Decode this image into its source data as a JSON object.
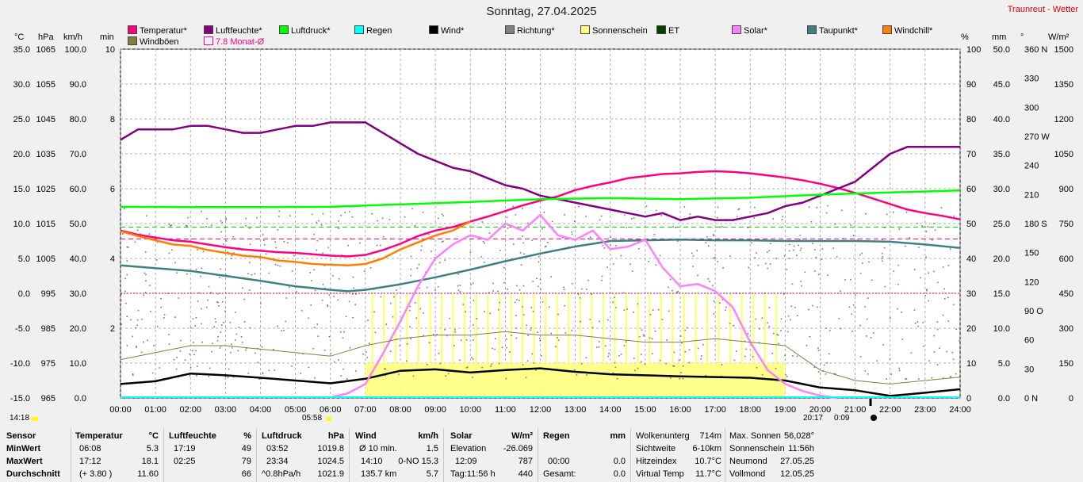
{
  "header": {
    "title": "Sonntag, 27.04.2025",
    "site": "Traunreut - Wetter"
  },
  "legend": [
    {
      "label": "Temperatur*",
      "color": "#ff0080"
    },
    {
      "label": "Luftfeuchte*",
      "color": "#800080"
    },
    {
      "label": "Luftdruck*",
      "color": "#00ff00"
    },
    {
      "label": "Regen",
      "color": "#00ffff"
    },
    {
      "label": "Wind*",
      "color": "#000000"
    },
    {
      "label": "Richtung*",
      "color": "#808080"
    },
    {
      "label": "Sonnenschein",
      "color": "#ffff80"
    },
    {
      "label": "ET",
      "color": "#004000"
    },
    {
      "label": "Solar*",
      "color": "#ff80ff"
    },
    {
      "label": "Taupunkt*",
      "color": "#408080"
    },
    {
      "label": "Windchill*",
      "color": "#ff8000"
    },
    {
      "label": "Windböen",
      "color": "#808040"
    },
    {
      "label": "7.8 Monat-Ø",
      "color": "#ff0080"
    }
  ],
  "axes_units": {
    "left": [
      "°C",
      "hPa",
      "km/h",
      "min"
    ],
    "right": [
      "%",
      "mm",
      "°",
      "W/m²"
    ]
  },
  "chart_data": {
    "type": "line",
    "x_ticks": [
      "00:00",
      "01:00",
      "02:00",
      "03:00",
      "04:00",
      "05:00",
      "06:00",
      "07:00",
      "08:00",
      "09:00",
      "10:00",
      "11:00",
      "12:00",
      "13:00",
      "14:00",
      "15:00",
      "16:00",
      "17:00",
      "18:00",
      "19:00",
      "20:00",
      "21:00",
      "22:00",
      "23:00",
      "24:00"
    ],
    "axes": {
      "temperature": {
        "unit": "°C",
        "ylim": [
          -15,
          35
        ],
        "ticks": [
          "35.0",
          "30.0",
          "25.0",
          "20.0",
          "15.0",
          "10.0",
          "5.0",
          "0.0",
          "-5.0",
          "-10.0",
          "-15.0"
        ]
      },
      "pressure": {
        "unit": "hPa",
        "ylim": [
          965,
          1065
        ],
        "ticks": [
          "1065",
          "1055",
          "1045",
          "1035",
          "1025",
          "1015",
          "1005",
          "995",
          "985",
          "975",
          "965"
        ]
      },
      "wind": {
        "unit": "km/h",
        "ylim": [
          0,
          100
        ],
        "ticks": [
          "100.0",
          "90.0",
          "80.0",
          "70.0",
          "60.0",
          "50.0",
          "40.0",
          "30.0",
          "20.0",
          "10.0",
          "0.0"
        ]
      },
      "sunshine": {
        "unit": "min",
        "ylim": [
          0,
          10
        ],
        "ticks": [
          "10",
          "",
          "8",
          "",
          "6",
          "",
          "4",
          "",
          "2",
          "",
          ""
        ]
      },
      "humidity": {
        "unit": "%",
        "ylim": [
          0,
          100
        ],
        "ticks": [
          "100",
          "90",
          "80",
          "70",
          "60",
          "50",
          "40",
          "30",
          "20",
          "10",
          "0"
        ]
      },
      "rain": {
        "unit": "mm",
        "ylim": [
          0,
          50
        ],
        "ticks": [
          "50.0",
          "45.0",
          "40.0",
          "35.0",
          "30.0",
          "25.0",
          "20.0",
          "15.0",
          "10.0",
          "5.0",
          "0.0"
        ]
      },
      "direction": {
        "unit": "°",
        "ylim": [
          0,
          360
        ],
        "ticks": [
          "360 N",
          "330",
          "300",
          "270 W",
          "240",
          "210",
          "180 S",
          "150",
          "120",
          "90 O",
          "60",
          "30",
          "0 N"
        ]
      },
      "solar": {
        "unit": "W/m²",
        "ylim": [
          0,
          1500
        ],
        "ticks": [
          "1500",
          "1350",
          "1200",
          "1050",
          "900",
          "750",
          "600",
          "450",
          "300",
          "150",
          "0"
        ]
      }
    },
    "series": [
      {
        "name": "Temperatur*",
        "axis": "temperature",
        "color": "#ff0080",
        "x": [
          0,
          0.5,
          1,
          1.5,
          2,
          2.5,
          3,
          3.5,
          4,
          4.5,
          5,
          5.5,
          6,
          6.5,
          7,
          7.5,
          8,
          8.5,
          9,
          9.5,
          10,
          10.5,
          11,
          11.5,
          12,
          12.5,
          13,
          13.5,
          14,
          14.5,
          15,
          15.5,
          16,
          16.5,
          17,
          17.5,
          18,
          18.5,
          19,
          19.5,
          20,
          20.5,
          21,
          21.5,
          22,
          22.5,
          23,
          23.5,
          24
        ],
        "values": [
          9.0,
          8.4,
          8.0,
          7.6,
          7.4,
          7.0,
          6.6,
          6.3,
          6.1,
          5.9,
          5.8,
          5.6,
          5.4,
          5.3,
          5.5,
          6.2,
          7.1,
          8.2,
          9.0,
          9.5,
          10.3,
          11.0,
          11.8,
          12.6,
          13.3,
          13.9,
          14.8,
          15.4,
          15.9,
          16.5,
          16.8,
          17.1,
          17.2,
          17.4,
          17.5,
          17.4,
          17.2,
          16.9,
          16.6,
          16.2,
          15.7,
          15.1,
          14.4,
          13.6,
          12.8,
          12.0,
          11.5,
          11.1,
          10.6
        ]
      },
      {
        "name": "Luftfeuchte*",
        "axis": "humidity",
        "color": "#800080",
        "x": [
          0,
          0.5,
          1,
          1.5,
          2,
          2.5,
          3,
          3.5,
          4,
          4.5,
          5,
          5.5,
          6,
          6.5,
          7,
          7.5,
          8,
          8.5,
          9,
          9.5,
          10,
          10.5,
          11,
          11.5,
          12,
          12.5,
          13,
          13.5,
          14,
          14.5,
          15,
          15.5,
          16,
          16.5,
          17,
          17.5,
          18,
          18.5,
          19,
          19.5,
          20,
          20.5,
          21,
          21.5,
          22,
          22.5,
          23,
          23.5,
          24
        ],
        "values": [
          74,
          77,
          77,
          77,
          78,
          78,
          77,
          76,
          76,
          77,
          78,
          78,
          79,
          79,
          79,
          76,
          73,
          70,
          68,
          66,
          65,
          63,
          61,
          60,
          58,
          57,
          56,
          55,
          54,
          53,
          52,
          53,
          51,
          52,
          51,
          51,
          52,
          53,
          55,
          56,
          58,
          60,
          62,
          66,
          70,
          72,
          72,
          72,
          72
        ]
      },
      {
        "name": "Luftdruck*",
        "axis": "pressure",
        "color": "#00ff00",
        "x": [
          0,
          2,
          4,
          6,
          8,
          10,
          12,
          14,
          16,
          18,
          20,
          22,
          24
        ],
        "values": [
          1019.8,
          1019.7,
          1019.7,
          1019.8,
          1020.5,
          1021.2,
          1022.0,
          1022.3,
          1022.0,
          1022.4,
          1023.3,
          1023.9,
          1024.5
        ]
      },
      {
        "name": "Taupunkt*",
        "axis": "temperature",
        "color": "#408080",
        "x": [
          0,
          1,
          2,
          3,
          4,
          5,
          6,
          6.5,
          7,
          8,
          9,
          10,
          11,
          12,
          13,
          14,
          15,
          16,
          17,
          18,
          19,
          20,
          21,
          22,
          23,
          24
        ],
        "values": [
          4.0,
          3.6,
          3.2,
          2.5,
          1.8,
          1.0,
          0.5,
          0.3,
          0.5,
          1.3,
          2.3,
          3.4,
          4.6,
          5.7,
          6.7,
          7.5,
          7.6,
          7.7,
          7.6,
          7.6,
          7.5,
          7.5,
          7.5,
          7.4,
          7.0,
          6.5
        ]
      },
      {
        "name": "Windchill*",
        "axis": "temperature",
        "color": "#ff8000",
        "x": [
          0,
          0.5,
          1,
          1.5,
          2,
          2.5,
          3,
          3.5,
          4,
          4.5,
          5,
          5.5,
          6,
          6.5,
          7,
          7.5,
          8,
          8.5,
          9,
          9.5,
          10
        ],
        "values": [
          8.9,
          8.2,
          7.6,
          7.0,
          6.8,
          6.2,
          5.8,
          5.4,
          5.2,
          4.7,
          4.5,
          4.2,
          4.1,
          4.0,
          4.2,
          5.0,
          6.3,
          7.3,
          8.3,
          9.0,
          10.3
        ]
      },
      {
        "name": "Wind*",
        "axis": "wind",
        "color": "#000000",
        "x": [
          0,
          1,
          2,
          3,
          4,
          5,
          6,
          7,
          8,
          9,
          10,
          11,
          12,
          13,
          14,
          15,
          16,
          17,
          18,
          19,
          20,
          21,
          22,
          23,
          24
        ],
        "values": [
          4.0,
          4.8,
          7.0,
          6.5,
          5.8,
          5.0,
          4.2,
          5.5,
          7.8,
          8.2,
          7.3,
          8.0,
          8.5,
          7.5,
          6.8,
          6.5,
          6.2,
          6.0,
          5.8,
          5.0,
          3.0,
          2.2,
          0.6,
          1.5,
          2.5
        ]
      },
      {
        "name": "Solar*",
        "axis": "solar",
        "color": "#ff80ff",
        "x": [
          6,
          6.5,
          7,
          7.5,
          8,
          8.5,
          9,
          9.5,
          10,
          10.5,
          11,
          11.5,
          12,
          12.5,
          13,
          13.5,
          14,
          14.5,
          15,
          15.5,
          16,
          16.5,
          17,
          17.5,
          18,
          18.5,
          19,
          19.5,
          20,
          20.5
        ],
        "values": [
          2,
          20,
          60,
          190,
          330,
          480,
          600,
          660,
          700,
          680,
          750,
          720,
          787,
          700,
          680,
          720,
          640,
          650,
          680,
          560,
          480,
          490,
          460,
          390,
          240,
          120,
          60,
          30,
          10,
          0
        ]
      },
      {
        "name": "Windböen",
        "axis": "wind",
        "color": "#808040",
        "x": [
          0,
          1,
          2,
          3,
          4,
          5,
          6,
          7,
          8,
          9,
          10,
          11,
          12,
          13,
          14,
          15,
          16,
          17,
          18,
          19,
          20,
          21,
          22,
          23,
          24
        ],
        "values": [
          11,
          13,
          15,
          15,
          14,
          13,
          12,
          15,
          17,
          18,
          18,
          19,
          18,
          18,
          17,
          16,
          16,
          17,
          16,
          15,
          8,
          5,
          4,
          5,
          6
        ]
      }
    ],
    "reference_lines": [
      {
        "label": "7.8 Monat-Ø",
        "axis": "temperature",
        "value": 7.8,
        "color": "#ff0080"
      }
    ],
    "sunshine_bars": {
      "axis": "sunshine",
      "from": 7.0,
      "to": 19.0
    },
    "time_notes": [
      {
        "label": "14:18",
        "pos": "left"
      },
      {
        "label": "05:58",
        "pos": "sunrise"
      },
      {
        "label": "20:17",
        "pos": "sunset"
      },
      {
        "label": "0:09",
        "pos": "moon"
      }
    ]
  },
  "table": {
    "sensor": {
      "title": "Sensor",
      "rows": [
        "MinWert",
        "MaxWert",
        "Durchschnitt"
      ]
    },
    "temperatur": {
      "title": "Temperatur",
      "unit": "°C",
      "rows": [
        [
          "06:08",
          "5.3"
        ],
        [
          "17:12",
          "18.1"
        ],
        [
          "(+ 3.80 )",
          "11.60"
        ]
      ]
    },
    "luftfeuchte": {
      "title": "Luftfeuchte",
      "unit": "%",
      "rows": [
        [
          "17:19",
          "49"
        ],
        [
          "02:25",
          "79"
        ],
        [
          "",
          "66"
        ]
      ]
    },
    "luftdruck": {
      "title": "Luftdruck",
      "unit": "hPa",
      "rows": [
        [
          "03:52",
          "1019.8"
        ],
        [
          "23:34",
          "1024.5"
        ],
        [
          "^0.8hPa/h",
          "1021.9"
        ]
      ]
    },
    "wind": {
      "title": "Wind",
      "unit": "km/h",
      "rows": [
        [
          "Ø 10 min.",
          "1.5"
        ],
        [
          "14:10",
          "0-NO 15.3"
        ],
        [
          "135.7 km",
          "5.7"
        ]
      ]
    },
    "solar": {
      "title": "Solar",
      "unit": "W/m²",
      "rows": [
        [
          "Elevation",
          "-26.069"
        ],
        [
          "12:09",
          "787"
        ],
        [
          "Tag:11:56 h",
          "440"
        ]
      ]
    },
    "regen": {
      "title": "Regen",
      "unit": "mm",
      "rows": [
        [
          "",
          ""
        ],
        [
          "00:00",
          "0.0"
        ],
        [
          "Gesamt:",
          "0.0"
        ]
      ]
    },
    "info1": {
      "rows": [
        [
          "Wolkenunterg",
          "714m"
        ],
        [
          "Sichtweite",
          "6-10km"
        ],
        [
          "Hitzeindex",
          "10.7°C"
        ],
        [
          "Virtual Temp",
          "11.7°C"
        ]
      ]
    },
    "info2": {
      "rows": [
        [
          "Max. Sonnen",
          "56,028°"
        ],
        [
          "Sonnenschein",
          "11:56h"
        ],
        [
          "Neumond",
          "27.05.25"
        ],
        [
          "Vollmond",
          "12.05.25"
        ]
      ]
    }
  }
}
